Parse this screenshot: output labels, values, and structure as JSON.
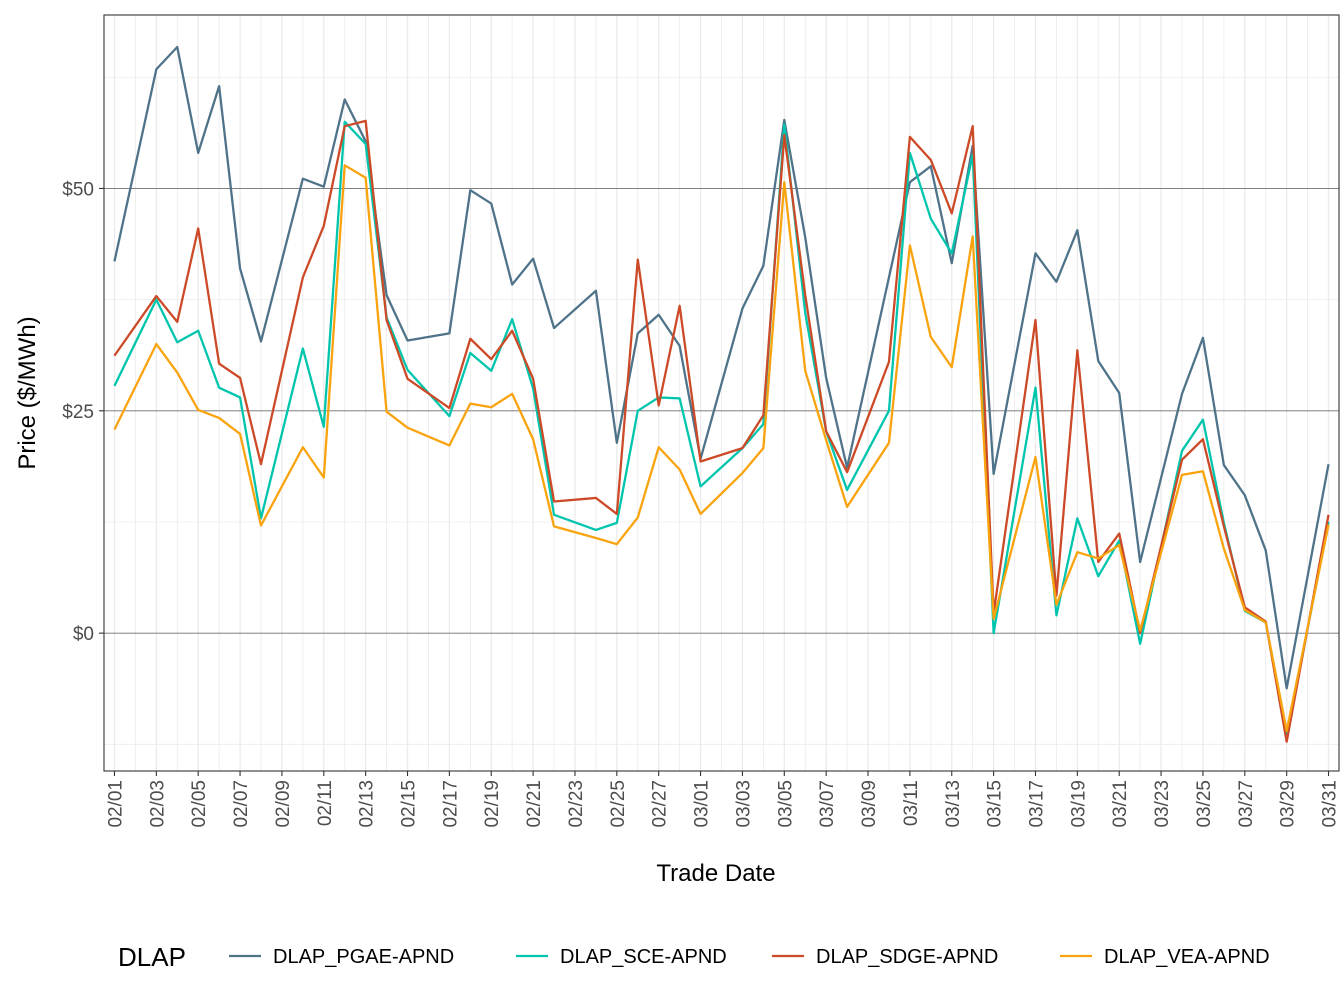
{
  "chart_data": {
    "type": "line",
    "title": "",
    "xlabel": "Trade Date",
    "ylabel": "Price ($/MWh)",
    "ylim": [
      -15.5,
      69.5
    ],
    "y_ticks": [
      0,
      25,
      50
    ],
    "y_tick_labels": [
      "$0",
      "$25",
      "$50"
    ],
    "x_tick_labels": [
      "02/01",
      "02/03",
      "02/05",
      "02/07",
      "02/09",
      "02/11",
      "02/13",
      "02/15",
      "02/17",
      "02/19",
      "02/21",
      "02/23",
      "02/25",
      "02/27",
      "03/01",
      "03/03",
      "03/05",
      "03/07",
      "03/09",
      "03/11",
      "03/13",
      "03/15",
      "03/17",
      "03/19",
      "03/21",
      "03/23",
      "03/25",
      "03/27",
      "03/29",
      "03/31"
    ],
    "x_tick_positions": [
      0,
      2,
      4,
      6,
      8,
      10,
      12,
      14,
      16,
      18,
      20,
      22,
      24,
      26,
      28,
      30,
      32,
      34,
      36,
      38,
      40,
      42,
      44,
      46,
      48,
      50,
      52,
      54,
      56,
      58
    ],
    "x_range": [
      -0.5,
      58.5
    ],
    "legend_title": "DLAP",
    "legend_position": "bottom",
    "series": [
      {
        "name": "DLAP_PGAE-APND",
        "color": "#4f7389",
        "points": [
          [
            0,
            41.8
          ],
          [
            2,
            63.4
          ],
          [
            3,
            65.9
          ],
          [
            4,
            54
          ],
          [
            5,
            61.5
          ],
          [
            6,
            41
          ],
          [
            7,
            32.8
          ],
          [
            9,
            51.1
          ],
          [
            10,
            50.2
          ],
          [
            11,
            60
          ],
          [
            12,
            55.3
          ],
          [
            13,
            38
          ],
          [
            14,
            32.9
          ],
          [
            16,
            33.7
          ],
          [
            17,
            49.8
          ],
          [
            18,
            48.3
          ],
          [
            19,
            39.2
          ],
          [
            20,
            42.1
          ],
          [
            21,
            34.3
          ],
          [
            23,
            38.5
          ],
          [
            24,
            21.4
          ],
          [
            25,
            33.7
          ],
          [
            26,
            35.8
          ],
          [
            27,
            32.3
          ],
          [
            28,
            19.6
          ],
          [
            30,
            36.5
          ],
          [
            31,
            41.3
          ],
          [
            32,
            57.7
          ],
          [
            33,
            44.5
          ],
          [
            34,
            28.7
          ],
          [
            35,
            18.6
          ],
          [
            38,
            50.7
          ],
          [
            39,
            52.5
          ],
          [
            40,
            41.6
          ],
          [
            41,
            54.8
          ],
          [
            42,
            17.9
          ],
          [
            44,
            42.7
          ],
          [
            45,
            39.5
          ],
          [
            46,
            45.3
          ],
          [
            47,
            30.6
          ],
          [
            48,
            27
          ],
          [
            49,
            8
          ],
          [
            51,
            26.9
          ],
          [
            52,
            33.2
          ],
          [
            53,
            18.9
          ],
          [
            54,
            15.5
          ],
          [
            55,
            9.3
          ],
          [
            56,
            -6.2
          ],
          [
            58,
            19
          ]
        ]
      },
      {
        "name": "DLAP_SCE-APND",
        "color": "#00c5ad",
        "points": [
          [
            0,
            27.8
          ],
          [
            2,
            37.5
          ],
          [
            3,
            32.7
          ],
          [
            4,
            34
          ],
          [
            5,
            27.6
          ],
          [
            6,
            26.5
          ],
          [
            7,
            12.9
          ],
          [
            9,
            32
          ],
          [
            10,
            23.2
          ],
          [
            11,
            57.5
          ],
          [
            12,
            55
          ],
          [
            13,
            35.5
          ],
          [
            14,
            29.6
          ],
          [
            16,
            24.4
          ],
          [
            17,
            31.5
          ],
          [
            18,
            29.5
          ],
          [
            19,
            35.3
          ],
          [
            20,
            27.5
          ],
          [
            21,
            13.3
          ],
          [
            23,
            11.6
          ],
          [
            24,
            12.4
          ],
          [
            25,
            25
          ],
          [
            26,
            26.5
          ],
          [
            27,
            26.4
          ],
          [
            28,
            16.5
          ],
          [
            30,
            20.8
          ],
          [
            31,
            23.5
          ],
          [
            32,
            57.2
          ],
          [
            33,
            36
          ],
          [
            34,
            22.7
          ],
          [
            35,
            16.1
          ],
          [
            37,
            25
          ],
          [
            38,
            54
          ],
          [
            39,
            46.6
          ],
          [
            40,
            42.7
          ],
          [
            41,
            53.8
          ],
          [
            42,
            0
          ],
          [
            44,
            27.6
          ],
          [
            45,
            2
          ],
          [
            46,
            12.9
          ],
          [
            47,
            6.4
          ],
          [
            48,
            10.4
          ],
          [
            49,
            -1.2
          ],
          [
            51,
            20.5
          ],
          [
            52,
            24
          ],
          [
            53,
            12.4
          ],
          [
            54,
            2.5
          ],
          [
            55,
            1.2
          ],
          [
            56,
            -11.5
          ],
          [
            58,
            12.5
          ]
        ]
      },
      {
        "name": "DLAP_SDGE-APND",
        "color": "#cc4a27",
        "points": [
          [
            0,
            31.2
          ],
          [
            2,
            37.9
          ],
          [
            3,
            35
          ],
          [
            4,
            45.5
          ],
          [
            5,
            30.3
          ],
          [
            6,
            28.7
          ],
          [
            7,
            19
          ],
          [
            9,
            40
          ],
          [
            10,
            45.8
          ],
          [
            11,
            57
          ],
          [
            12,
            57.6
          ],
          [
            13,
            35.2
          ],
          [
            14,
            28.6
          ],
          [
            16,
            25.3
          ],
          [
            17,
            33.1
          ],
          [
            18,
            30.8
          ],
          [
            19,
            34
          ],
          [
            20,
            28.6
          ],
          [
            21,
            14.8
          ],
          [
            23,
            15.2
          ],
          [
            24,
            13.4
          ],
          [
            25,
            42
          ],
          [
            26,
            25.6
          ],
          [
            27,
            36.8
          ],
          [
            28,
            19.3
          ],
          [
            30,
            20.8
          ],
          [
            31,
            24.5
          ],
          [
            32,
            56
          ],
          [
            33,
            38
          ],
          [
            34,
            22.7
          ],
          [
            35,
            18.1
          ],
          [
            37,
            30.5
          ],
          [
            38,
            55.8
          ],
          [
            39,
            53.2
          ],
          [
            40,
            47.2
          ],
          [
            41,
            57
          ],
          [
            42,
            2.2
          ],
          [
            44,
            35.2
          ],
          [
            45,
            4.2
          ],
          [
            46,
            31.8
          ],
          [
            47,
            8
          ],
          [
            48,
            11.2
          ],
          [
            49,
            0
          ],
          [
            51,
            19.5
          ],
          [
            52,
            21.8
          ],
          [
            53,
            12
          ],
          [
            54,
            2.9
          ],
          [
            55,
            1.3
          ],
          [
            56,
            -12.2
          ],
          [
            58,
            13.3
          ]
        ]
      },
      {
        "name": "DLAP_VEA-APND",
        "color": "#f9a30e",
        "points": [
          [
            0,
            22.9
          ],
          [
            2,
            32.5
          ],
          [
            3,
            29.3
          ],
          [
            4,
            25.1
          ],
          [
            5,
            24.2
          ],
          [
            6,
            22.4
          ],
          [
            7,
            12.1
          ],
          [
            9,
            20.9
          ],
          [
            10,
            17.5
          ],
          [
            11,
            52.6
          ],
          [
            12,
            51.2
          ],
          [
            13,
            24.9
          ],
          [
            14,
            23.1
          ],
          [
            16,
            21.1
          ],
          [
            17,
            25.8
          ],
          [
            18,
            25.4
          ],
          [
            19,
            26.9
          ],
          [
            20,
            21.8
          ],
          [
            21,
            12
          ],
          [
            23,
            10.7
          ],
          [
            24,
            10
          ],
          [
            25,
            13
          ],
          [
            26,
            20.9
          ],
          [
            27,
            18.4
          ],
          [
            28,
            13.4
          ],
          [
            30,
            18
          ],
          [
            31,
            20.8
          ],
          [
            32,
            50.7
          ],
          [
            33,
            29.5
          ],
          [
            34,
            21.7
          ],
          [
            35,
            14.2
          ],
          [
            37,
            21.4
          ],
          [
            38,
            43.6
          ],
          [
            39,
            33.3
          ],
          [
            40,
            29.9
          ],
          [
            41,
            44.6
          ],
          [
            42,
            1.6
          ],
          [
            44,
            19.8
          ],
          [
            45,
            3.2
          ],
          [
            46,
            9.1
          ],
          [
            47,
            8.4
          ],
          [
            48,
            9.9
          ],
          [
            49,
            0.3
          ],
          [
            51,
            17.8
          ],
          [
            52,
            18.2
          ],
          [
            53,
            9.5
          ],
          [
            54,
            2.6
          ],
          [
            55,
            1.2
          ],
          [
            56,
            -11
          ],
          [
            58,
            12.2
          ]
        ]
      }
    ]
  }
}
